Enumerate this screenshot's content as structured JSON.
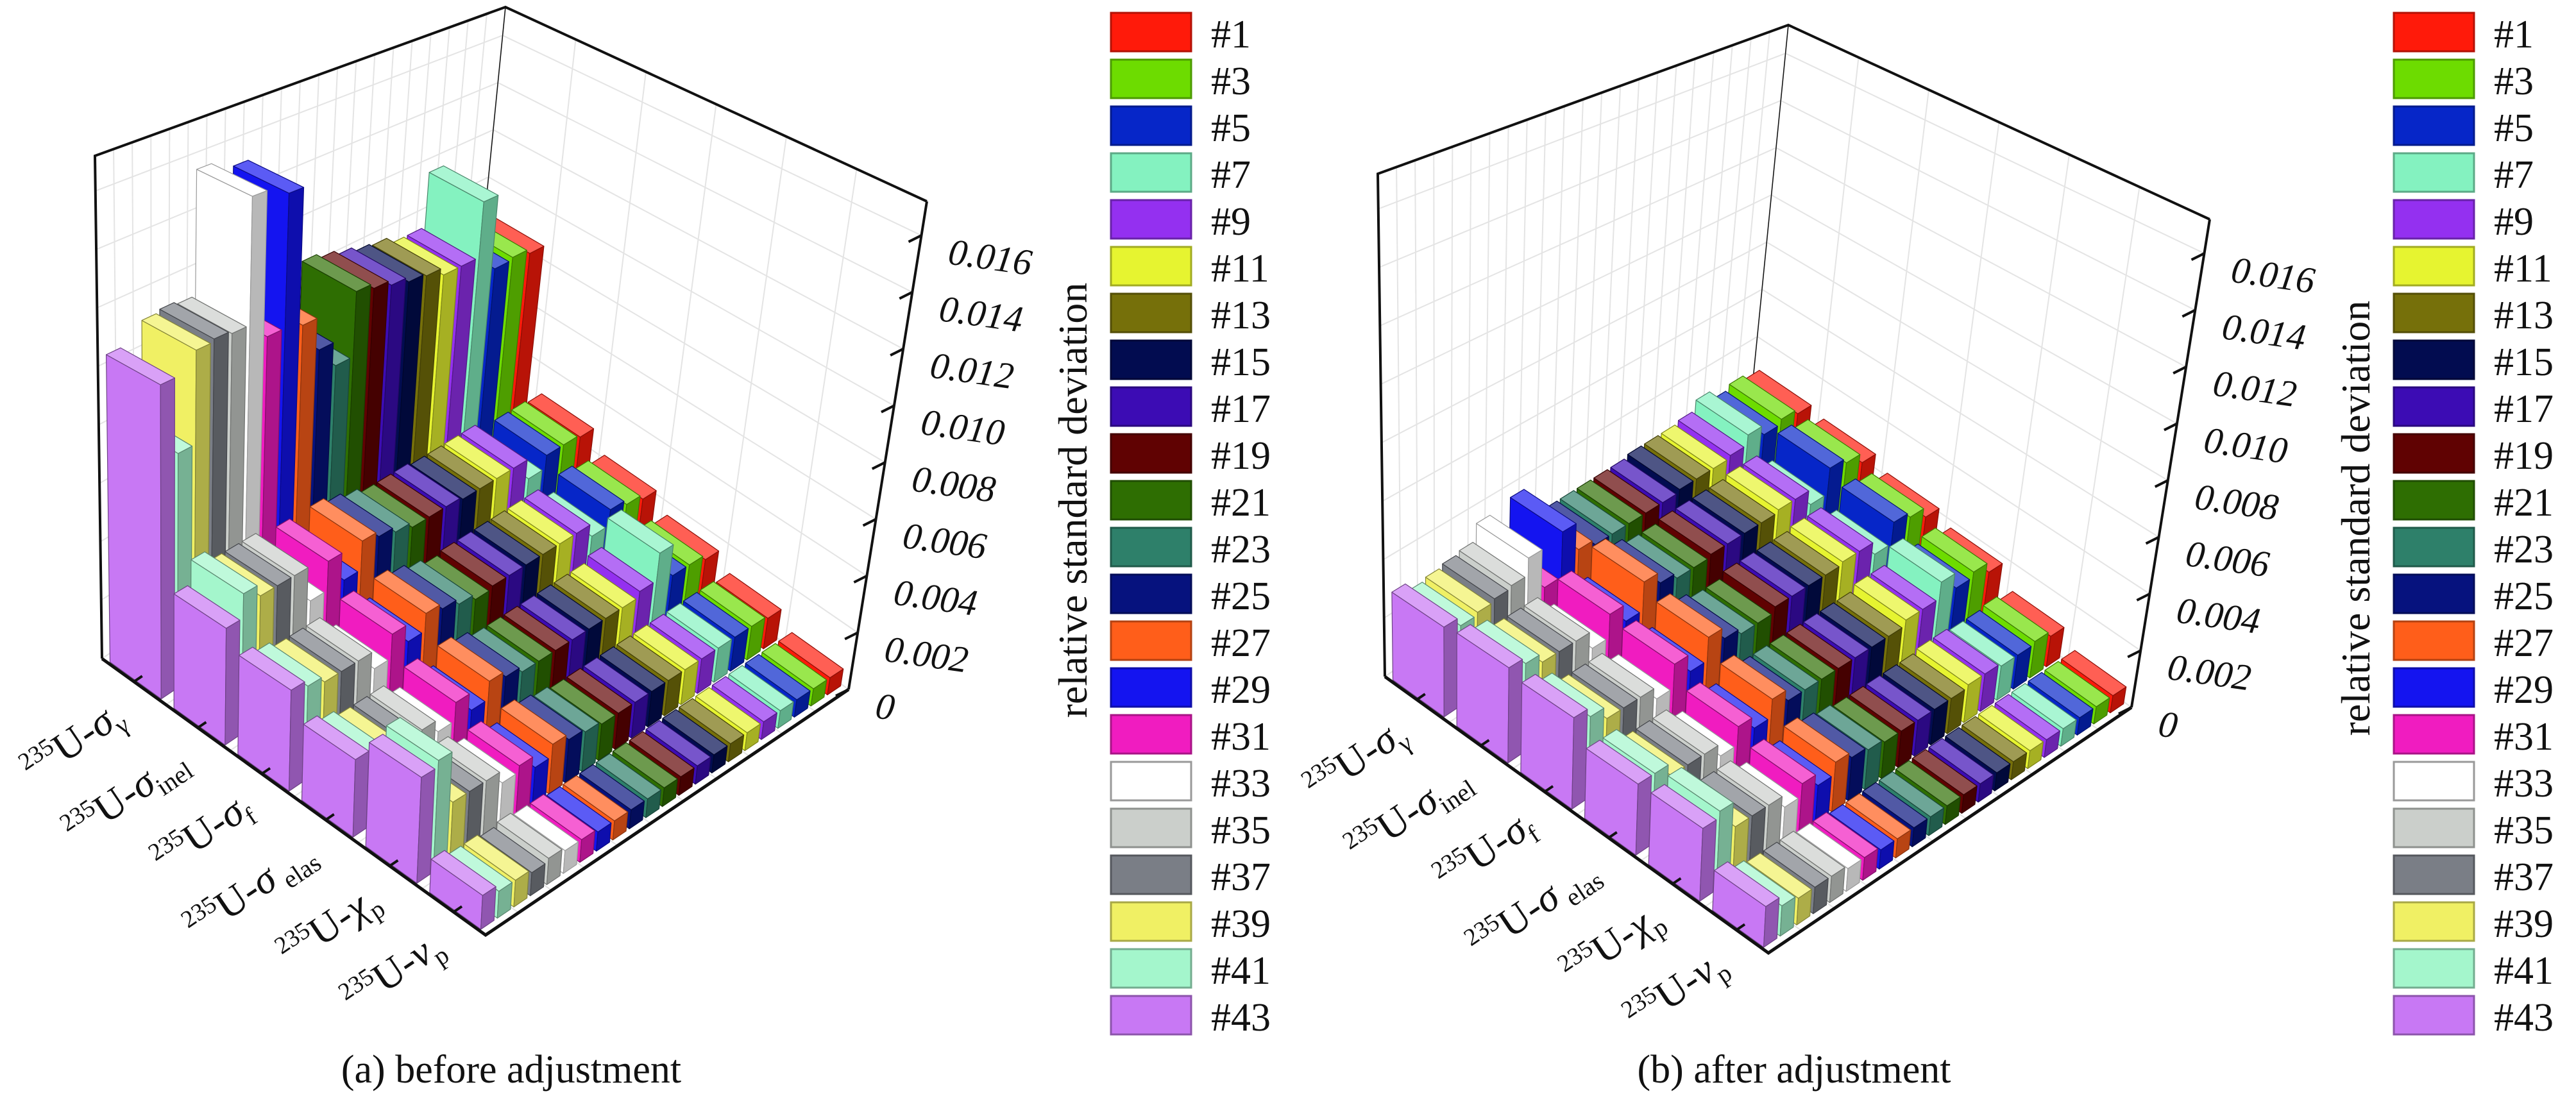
{
  "chart_data": [
    {
      "type": "bar",
      "subtype": "3d-bar",
      "title": "(a) before adjustment",
      "zlabel": "relative standard deviation",
      "zlim": [
        0,
        0.0172
      ],
      "zticks": [
        0,
        0.002,
        0.004,
        0.006,
        0.008,
        0.01,
        0.012,
        0.014,
        0.016
      ],
      "ztick_labels": [
        "0",
        "0.002",
        "0.004",
        "0.006",
        "0.008",
        "0.010",
        "0.012",
        "0.014",
        "0.016"
      ],
      "grid": true,
      "legend": "right",
      "categories": [
        {
          "mass": "235",
          "base": "U-",
          "symbol": "σ",
          "sub": "γ"
        },
        {
          "mass": "235",
          "base": "U-",
          "symbol": "σ",
          "sub": "inel"
        },
        {
          "mass": "235",
          "base": "U-",
          "symbol": "σ",
          "sub": "f"
        },
        {
          "mass": "235",
          "base": "U-",
          "symbol": "σ",
          "sub": " elas"
        },
        {
          "mass": "235",
          "base": "U-",
          "symbol": "χ",
          "sub": "p"
        },
        {
          "mass": "235",
          "base": "U-",
          "symbol": "ν",
          "sub": "p"
        }
      ],
      "series": [
        {
          "name": "#1",
          "color": "#ff1a0a"
        },
        {
          "name": "#3",
          "color": "#6ddc00"
        },
        {
          "name": "#5",
          "color": "#0626c8"
        },
        {
          "name": "#7",
          "color": "#84f2c0"
        },
        {
          "name": "#9",
          "color": "#9430f0"
        },
        {
          "name": "#11",
          "color": "#e6f430"
        },
        {
          "name": "#13",
          "color": "#76700a"
        },
        {
          "name": "#15",
          "color": "#020c50"
        },
        {
          "name": "#17",
          "color": "#3c0cb4"
        },
        {
          "name": "#19",
          "color": "#600202"
        },
        {
          "name": "#21",
          "color": "#2e6e02"
        },
        {
          "name": "#23",
          "color": "#2e806a"
        },
        {
          "name": "#25",
          "color": "#06127e"
        },
        {
          "name": "#27",
          "color": "#ff5e1a"
        },
        {
          "name": "#29",
          "color": "#1414f0"
        },
        {
          "name": "#31",
          "color": "#f01cc0"
        },
        {
          "name": "#33",
          "color": "#ffffff"
        },
        {
          "name": "#35",
          "color": "#cbcfcb"
        },
        {
          "name": "#37",
          "color": "#7a7e86"
        },
        {
          "name": "#39",
          "color": "#f0f064"
        },
        {
          "name": "#41",
          "color": "#a4f6cc"
        },
        {
          "name": "#43",
          "color": "#c878f4"
        }
      ],
      "values": [
        [
          0.0086,
          0.0088,
          0.0087,
          0.0117,
          0.0095,
          0.0095,
          0.0098,
          0.0099,
          0.0101,
          0.0103,
          0.0105,
          0.0081,
          0.009,
          0.0102,
          0.0152,
          0.0104,
          0.0156,
          0.0111,
          0.0112,
          0.0111,
          0.0079,
          0.0105
        ],
        [
          0.0029,
          0.003,
          0.003,
          0.0025,
          0.0033,
          0.0033,
          0.0033,
          0.0033,
          0.0034,
          0.0034,
          0.0034,
          0.0036,
          0.0038,
          0.004,
          0.003,
          0.004,
          0.003,
          0.0042,
          0.0042,
          0.0042,
          0.0046,
          0.0038
        ],
        [
          0.0022,
          0.0024,
          0.0026,
          0.002,
          0.0025,
          0.0025,
          0.0025,
          0.0025,
          0.0025,
          0.0025,
          0.0024,
          0.0026,
          0.0028,
          0.003,
          0.0024,
          0.003,
          0.0022,
          0.0028,
          0.0028,
          0.0028,
          0.003,
          0.0032
        ],
        [
          0.0016,
          0.0018,
          0.0018,
          0.003,
          0.002,
          0.0018,
          0.0018,
          0.0018,
          0.0018,
          0.0018,
          0.0018,
          0.0018,
          0.002,
          0.0022,
          0.0016,
          0.0022,
          0.0016,
          0.002,
          0.002,
          0.002,
          0.0022,
          0.0024
        ],
        [
          0.0011,
          0.0012,
          0.0012,
          0.0012,
          0.0012,
          0.0012,
          0.0012,
          0.0012,
          0.0012,
          0.0012,
          0.0012,
          0.0013,
          0.0014,
          0.0016,
          0.0012,
          0.0016,
          0.0014,
          0.0018,
          0.0018,
          0.0018,
          0.0034,
          0.0032
        ],
        [
          0.0006,
          0.0006,
          0.0006,
          0.0006,
          0.0006,
          0.0006,
          0.0006,
          0.0006,
          0.0006,
          0.0006,
          0.0006,
          0.0006,
          0.0006,
          0.0006,
          0.0006,
          0.0007,
          0.0007,
          0.0008,
          0.0007,
          0.0008,
          0.0008,
          0.001
        ]
      ]
    },
    {
      "type": "bar",
      "subtype": "3d-bar",
      "title": "(b) after adjustment",
      "zlabel": "relative standard deviation",
      "zlim": [
        0,
        0.0172
      ],
      "zticks": [
        0,
        0.002,
        0.004,
        0.006,
        0.008,
        0.01,
        0.012,
        0.014,
        0.016
      ],
      "ztick_labels": [
        "0",
        "0.002",
        "0.004",
        "0.006",
        "0.008",
        "0.010",
        "0.012",
        "0.014",
        "0.016"
      ],
      "grid": true,
      "legend": "right",
      "categories": [
        {
          "mass": "235",
          "base": "U-",
          "symbol": "σ",
          "sub": "γ"
        },
        {
          "mass": "235",
          "base": "U-",
          "symbol": "σ",
          "sub": "inel"
        },
        {
          "mass": "235",
          "base": "U-",
          "symbol": "σ",
          "sub": "f"
        },
        {
          "mass": "235",
          "base": "U-",
          "symbol": "σ",
          "sub": " elas"
        },
        {
          "mass": "235",
          "base": "U-",
          "symbol": "χ",
          "sub": "p"
        },
        {
          "mass": "235",
          "base": "U-",
          "symbol": "ν",
          "sub": "p"
        }
      ],
      "series": [
        {
          "name": "#1",
          "color": "#ff1a0a"
        },
        {
          "name": "#3",
          "color": "#6ddc00"
        },
        {
          "name": "#5",
          "color": "#0626c8"
        },
        {
          "name": "#7",
          "color": "#84f2c0"
        },
        {
          "name": "#9",
          "color": "#9430f0"
        },
        {
          "name": "#11",
          "color": "#e6f430"
        },
        {
          "name": "#13",
          "color": "#76700a"
        },
        {
          "name": "#15",
          "color": "#020c50"
        },
        {
          "name": "#17",
          "color": "#3c0cb4"
        },
        {
          "name": "#19",
          "color": "#600202"
        },
        {
          "name": "#21",
          "color": "#2e6e02"
        },
        {
          "name": "#23",
          "color": "#2e806a"
        },
        {
          "name": "#25",
          "color": "#06127e"
        },
        {
          "name": "#27",
          "color": "#ff5e1a"
        },
        {
          "name": "#29",
          "color": "#1414f0"
        },
        {
          "name": "#31",
          "color": "#f01cc0"
        },
        {
          "name": "#33",
          "color": "#ffffff"
        },
        {
          "name": "#35",
          "color": "#cbcfcb"
        },
        {
          "name": "#37",
          "color": "#7a7e86"
        },
        {
          "name": "#39",
          "color": "#f0f064"
        },
        {
          "name": "#41",
          "color": "#a4f6cc"
        },
        {
          "name": "#43",
          "color": "#c878f4"
        }
      ],
      "values": [
        [
          0.0028,
          0.003,
          0.0028,
          0.0032,
          0.0028,
          0.0027,
          0.0027,
          0.0027,
          0.0026,
          0.0026,
          0.0026,
          0.0026,
          0.0026,
          0.0028,
          0.0038,
          0.0022,
          0.0036,
          0.003,
          0.0029,
          0.0028,
          0.0027,
          0.003
        ],
        [
          0.0026,
          0.003,
          0.0032,
          0.0022,
          0.0028,
          0.0028,
          0.0027,
          0.0027,
          0.0027,
          0.0027,
          0.0026,
          0.0026,
          0.0028,
          0.0032,
          0.0022,
          0.0028,
          0.002,
          0.0026,
          0.0026,
          0.0026,
          0.0029,
          0.0031
        ],
        [
          0.0022,
          0.0026,
          0.0028,
          0.002,
          0.0025,
          0.0025,
          0.0024,
          0.0024,
          0.0024,
          0.0024,
          0.0022,
          0.0022,
          0.0024,
          0.0028,
          0.002,
          0.0026,
          0.0018,
          0.0022,
          0.0022,
          0.0022,
          0.0026,
          0.0029
        ],
        [
          0.0018,
          0.0022,
          0.002,
          0.0026,
          0.002,
          0.002,
          0.0018,
          0.0018,
          0.0018,
          0.0018,
          0.0018,
          0.0018,
          0.0018,
          0.0022,
          0.0016,
          0.002,
          0.0014,
          0.0018,
          0.0018,
          0.0018,
          0.0022,
          0.0022
        ],
        [
          0.0011,
          0.0013,
          0.0012,
          0.0012,
          0.0013,
          0.0013,
          0.0012,
          0.0012,
          0.0012,
          0.0012,
          0.0012,
          0.0013,
          0.0014,
          0.0016,
          0.0012,
          0.0016,
          0.0012,
          0.0016,
          0.0016,
          0.0016,
          0.0024,
          0.0022
        ],
        [
          0.0006,
          0.0006,
          0.0006,
          0.0006,
          0.0006,
          0.0006,
          0.0006,
          0.0006,
          0.0006,
          0.0006,
          0.0006,
          0.0006,
          0.0006,
          0.0006,
          0.0006,
          0.0007,
          0.0007,
          0.0008,
          0.0008,
          0.0008,
          0.0009,
          0.0012
        ]
      ]
    }
  ]
}
